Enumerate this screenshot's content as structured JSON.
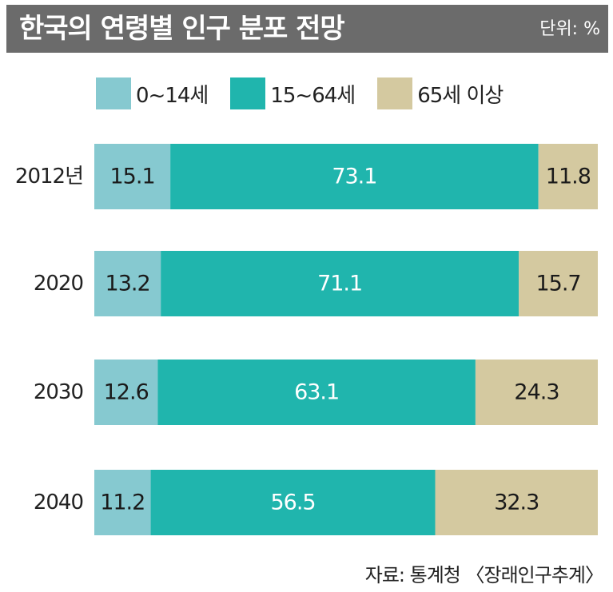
{
  "title": "한국의 연령별 인구 분포 전망",
  "unit": "단위: %",
  "source": "자료: 통계청 〈장래인구추계〉",
  "colors": {
    "age_0_14": "#86c9d0",
    "age_15_64": "#20b5ad",
    "age_65_plus": "#d4c9a0",
    "header": "#6b6b6b"
  },
  "chart_data": {
    "type": "bar",
    "orientation": "horizontal",
    "stacked": true,
    "categories": [
      "2012년",
      "2020",
      "2030",
      "2040"
    ],
    "series": [
      {
        "name": "0~14세",
        "values": [
          15.1,
          13.2,
          12.6,
          11.2
        ],
        "labels": [
          "15.1",
          "13.2",
          "12.6",
          "11.2"
        ]
      },
      {
        "name": "15~64세",
        "values": [
          73.1,
          71.1,
          63.1,
          56.5
        ],
        "labels": [
          "73.1",
          "71.1",
          "63.1",
          "56.5"
        ]
      },
      {
        "name": "65세 이상",
        "values": [
          11.8,
          15.7,
          24.3,
          32.3
        ],
        "labels": [
          "11.8",
          "15.7",
          "24.3",
          "32.3"
        ]
      }
    ],
    "xlim": [
      0,
      100
    ],
    "legend": "top",
    "grid": false
  }
}
